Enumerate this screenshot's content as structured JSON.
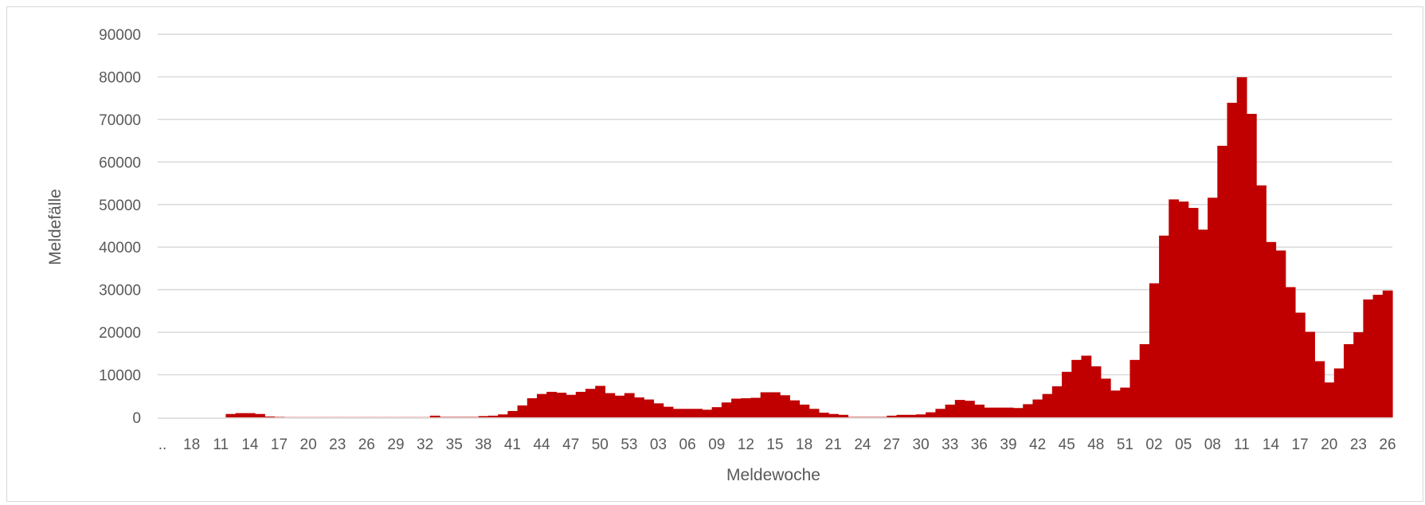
{
  "chart_data": {
    "type": "area",
    "title": "",
    "xlabel": "Meldewoche",
    "ylabel": "Meldefälle",
    "ylim": [
      0,
      90000
    ],
    "yticks": [
      0,
      10000,
      20000,
      30000,
      40000,
      50000,
      60000,
      70000,
      80000,
      90000
    ],
    "grid": true,
    "legend": "none",
    "color": "#c00000",
    "gridColor": "#d9d9d9",
    "x_tick_labels": [
      "..",
      "18",
      "11",
      "14",
      "17",
      "20",
      "23",
      "26",
      "29",
      "32",
      "35",
      "38",
      "41",
      "44",
      "47",
      "50",
      "53",
      "03",
      "06",
      "09",
      "12",
      "15",
      "18",
      "21",
      "24",
      "27",
      "30",
      "33",
      "36",
      "39",
      "42",
      "45",
      "48",
      "51",
      "02",
      "05",
      "08",
      "11",
      "14",
      "17",
      "20",
      "23",
      "26"
    ],
    "values": [
      0,
      0,
      0,
      0,
      0,
      0,
      0,
      800,
      1000,
      1000,
      800,
      200,
      100,
      50,
      50,
      50,
      50,
      50,
      50,
      50,
      50,
      50,
      50,
      50,
      50,
      50,
      50,
      50,
      400,
      100,
      100,
      100,
      100,
      300,
      400,
      700,
      1500,
      2800,
      4500,
      5500,
      6000,
      5800,
      5300,
      6000,
      6700,
      7400,
      5700,
      5100,
      5700,
      4700,
      4200,
      3300,
      2500,
      2000,
      2000,
      2000,
      1800,
      2400,
      3500,
      4400,
      4500,
      4600,
      5900,
      5900,
      5200,
      4000,
      3000,
      2000,
      1100,
      800,
      600,
      100,
      100,
      100,
      100,
      400,
      600,
      600,
      700,
      1200,
      2000,
      3000,
      4100,
      3900,
      3000,
      2300,
      2300,
      2300,
      2200,
      3100,
      4200,
      5500,
      7300,
      10700,
      13500,
      14500,
      12000,
      9100,
      6300,
      7000,
      13500,
      17200,
      31500,
      42700,
      51200,
      50700,
      49200,
      44100,
      51600,
      63800,
      73900,
      79900,
      71300,
      54500,
      41200,
      39200,
      30600,
      24600,
      20100,
      13200,
      8200,
      11500,
      17200,
      20000,
      27700,
      28800,
      29800
    ]
  }
}
